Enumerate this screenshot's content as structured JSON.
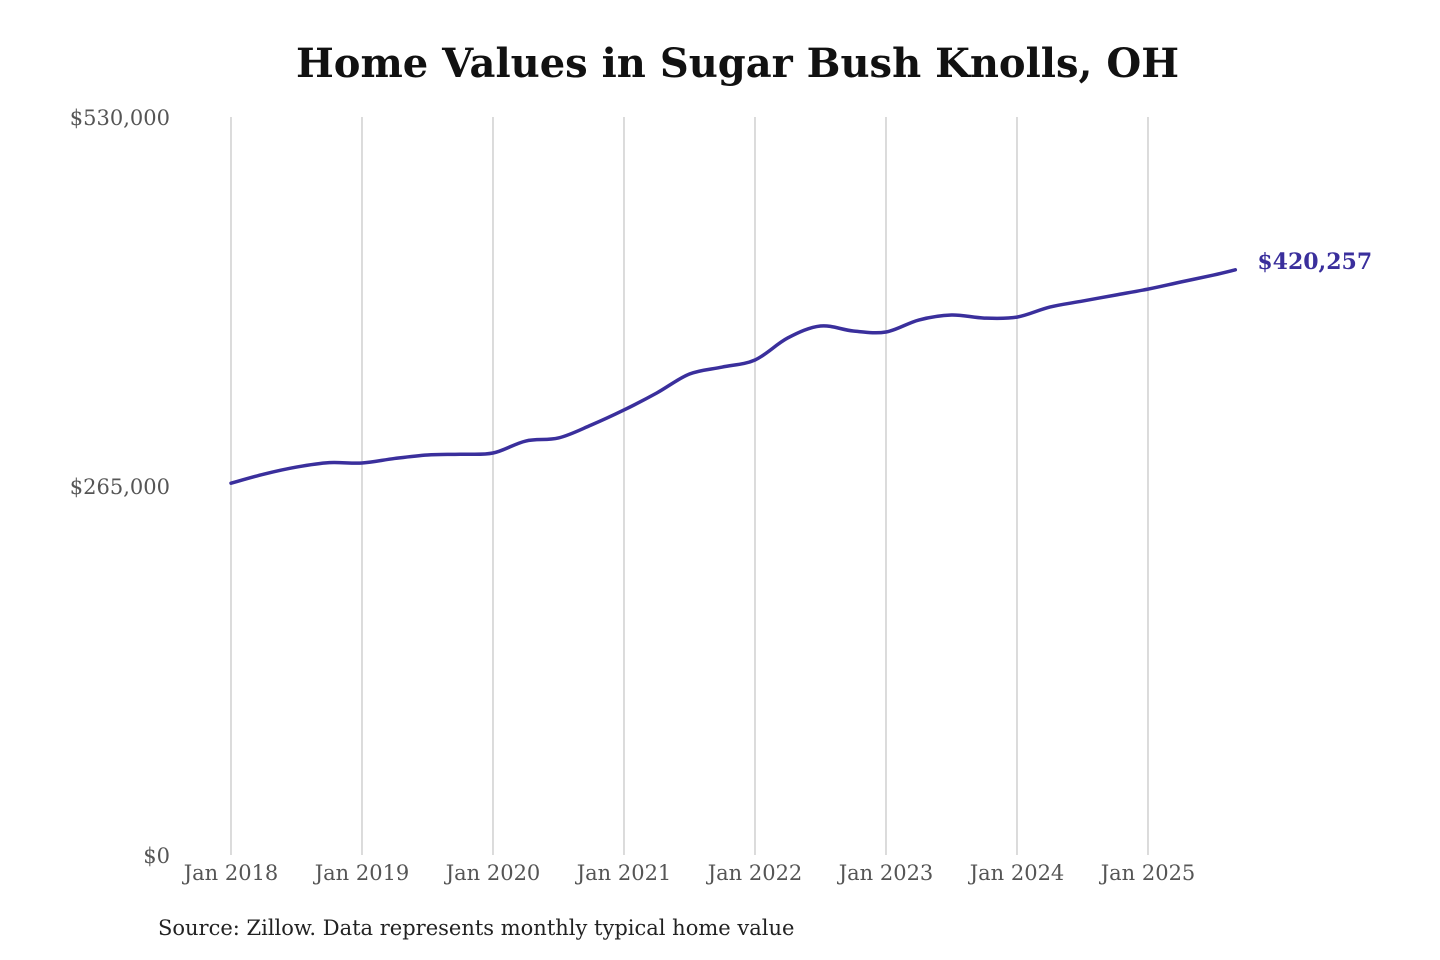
{
  "chart_data": {
    "type": "line",
    "title": "Home Values in Sugar Bush Knolls, OH",
    "source": "Source: Zillow. Data represents monthly typical home value",
    "ylim": [
      0,
      530000
    ],
    "y_ticks": [
      {
        "value": 0,
        "label": "$0"
      },
      {
        "value": 265000,
        "label": "$265,000"
      },
      {
        "value": 530000,
        "label": "$530,000"
      }
    ],
    "x_ticks": [
      {
        "date": "2018-01",
        "label": "Jan 2018"
      },
      {
        "date": "2019-01",
        "label": "Jan 2019"
      },
      {
        "date": "2020-01",
        "label": "Jan 2020"
      },
      {
        "date": "2021-01",
        "label": "Jan 2021"
      },
      {
        "date": "2022-01",
        "label": "Jan 2022"
      },
      {
        "date": "2023-01",
        "label": "Jan 2023"
      },
      {
        "date": "2024-01",
        "label": "Jan 2024"
      },
      {
        "date": "2025-01",
        "label": "Jan 2025"
      }
    ],
    "grid": "vertical",
    "line_color": "#3a2f9c",
    "end_label": "$420,257",
    "series": [
      {
        "x": [
          "2018-01",
          "2018-04",
          "2018-07",
          "2018-10",
          "2019-01",
          "2019-04",
          "2019-07",
          "2019-10",
          "2020-01",
          "2020-04",
          "2020-07",
          "2020-10",
          "2021-01",
          "2021-04",
          "2021-07",
          "2021-10",
          "2022-01",
          "2022-04",
          "2022-07",
          "2022-10",
          "2023-01",
          "2023-04",
          "2023-07",
          "2023-10",
          "2024-01",
          "2024-04",
          "2024-07",
          "2024-10",
          "2025-01",
          "2025-04",
          "2025-07",
          "2025-09"
        ],
        "values": [
          267000,
          273500,
          278600,
          281800,
          281500,
          284800,
          287300,
          287800,
          288700,
          297300,
          299500,
          308800,
          319600,
          331800,
          345400,
          350400,
          355500,
          371300,
          379900,
          376300,
          375600,
          384200,
          387800,
          385600,
          386300,
          393500,
          397800,
          402100,
          406400,
          411500,
          416500,
          420257
        ]
      }
    ]
  }
}
